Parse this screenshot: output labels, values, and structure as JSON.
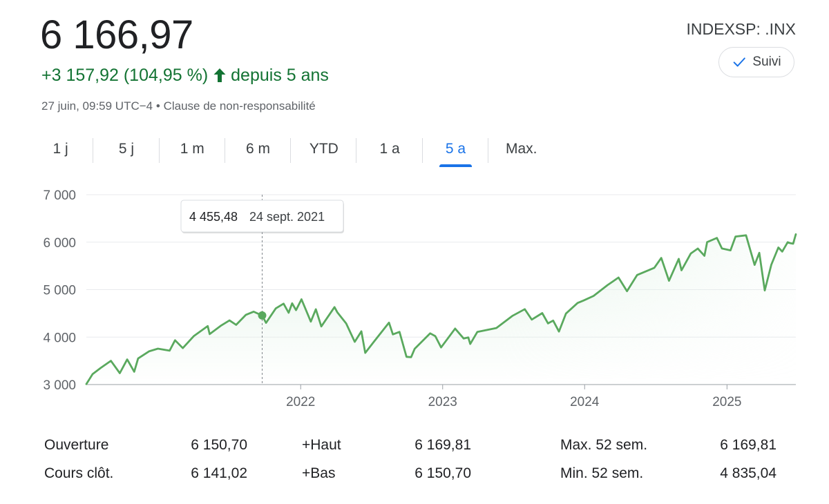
{
  "header": {
    "price": "6 166,97",
    "change": "+3 157,92 (104,95 %)",
    "period": "depuis 5 ans",
    "timestamp": "27 juin, 09:59 UTC−4",
    "separator": "•",
    "disclaimer": "Clause de non-responsabilité",
    "ticker": "INDEXSP: .INX",
    "follow_label": "Suivi"
  },
  "tabs": [
    {
      "label": "1 j"
    },
    {
      "label": "5 j"
    },
    {
      "label": "1 m"
    },
    {
      "label": "6 m"
    },
    {
      "label": "YTD"
    },
    {
      "label": "1 a"
    },
    {
      "label": "5 a",
      "active": true
    },
    {
      "label": "Max."
    }
  ],
  "colors": {
    "line": "#5aa95e",
    "fill": "#e6f4ea",
    "positive_text": "#137333",
    "active_tab": "#1a73e8",
    "grid": "#e8eaed",
    "axis_text": "#5f6368"
  },
  "tooltip": {
    "value": "4 455,48",
    "date": "24 sept. 2021"
  },
  "stats": {
    "open_label": "Ouverture",
    "open_value": "6 150,70",
    "close_label": "Cours clôt.",
    "close_value": "6 141,02",
    "high_label": "+Haut",
    "high_value": "6 169,81",
    "low_label": "+Bas",
    "low_value": "6 150,70",
    "max52_label": "Max. 52 sem.",
    "max52_value": "6 169,81",
    "min52_label": "Min. 52 sem.",
    "min52_value": "4 835,04"
  },
  "chart_data": {
    "type": "line",
    "ylim": [
      3000,
      7000
    ],
    "yticks": [
      3000,
      4000,
      5000,
      6000,
      7000
    ],
    "ytick_labels": [
      "3 000",
      "4 000",
      "5 000",
      "6 000",
      "7 000"
    ],
    "xlim": [
      "2020-06-29",
      "2025-06-27"
    ],
    "xticks": [
      "2022-01-01",
      "2023-01-01",
      "2024-01-01",
      "2025-01-01"
    ],
    "xtick_labels": [
      "2022",
      "2023",
      "2024",
      "2025"
    ],
    "grid": true,
    "highlight": {
      "x": "2021-09-24",
      "y": 4455.48
    },
    "series": [
      {
        "x": [
          "2020-06-29",
          "2020-07-15",
          "2020-08-05",
          "2020-08-31",
          "2020-09-23",
          "2020-10-12",
          "2020-10-30",
          "2020-11-09",
          "2020-12-07",
          "2020-12-30",
          "2021-01-29",
          "2021-02-12",
          "2021-03-04",
          "2021-04-01",
          "2021-05-07",
          "2021-05-12",
          "2021-06-11",
          "2021-07-02",
          "2021-07-19",
          "2021-08-13",
          "2021-09-02",
          "2021-09-24",
          "2021-10-04",
          "2021-10-29",
          "2021-11-18",
          "2021-12-01",
          "2021-12-10",
          "2021-12-20",
          "2022-01-03",
          "2022-01-27",
          "2022-02-09",
          "2022-02-23",
          "2022-03-29",
          "2022-04-05",
          "2022-04-28",
          "2022-05-20",
          "2022-06-06",
          "2022-06-16",
          "2022-07-08",
          "2022-08-16",
          "2022-08-26",
          "2022-09-12",
          "2022-09-30",
          "2022-10-12",
          "2022-10-21",
          "2022-11-30",
          "2022-12-13",
          "2022-12-28",
          "2023-02-02",
          "2023-02-24",
          "2023-03-08",
          "2023-03-13",
          "2023-03-31",
          "2023-05-19",
          "2023-06-30",
          "2023-07-31",
          "2023-08-18",
          "2023-09-14",
          "2023-09-29",
          "2023-10-12",
          "2023-10-27",
          "2023-11-14",
          "2023-12-14",
          "2023-12-29",
          "2024-01-24",
          "2024-02-29",
          "2024-03-28",
          "2024-04-19",
          "2024-05-15",
          "2024-06-28",
          "2024-07-16",
          "2024-08-05",
          "2024-08-30",
          "2024-09-06",
          "2024-09-30",
          "2024-10-18",
          "2024-11-04",
          "2024-11-11",
          "2024-12-06",
          "2024-12-19",
          "2025-01-10",
          "2025-01-23",
          "2025-02-19",
          "2025-03-13",
          "2025-03-25",
          "2025-04-08",
          "2025-04-25",
          "2025-05-13",
          "2025-05-23",
          "2025-06-06",
          "2025-06-13",
          "2025-06-20",
          "2025-06-27"
        ],
        "y": [
          3010,
          3220,
          3350,
          3500,
          3240,
          3530,
          3270,
          3550,
          3700,
          3756,
          3714,
          3934,
          3768,
          4020,
          4232,
          4063,
          4247,
          4352,
          4258,
          4468,
          4536,
          4455,
          4300,
          4605,
          4705,
          4513,
          4712,
          4568,
          4797,
          4326,
          4587,
          4225,
          4632,
          4525,
          4287,
          3901,
          4121,
          3667,
          3900,
          4305,
          4057,
          4110,
          3585,
          3577,
          3752,
          4080,
          4019,
          3783,
          4179,
          3970,
          3992,
          3855,
          4109,
          4192,
          4450,
          4589,
          4369,
          4505,
          4288,
          4349,
          4117,
          4495,
          4719,
          4770,
          4868,
          5096,
          5254,
          4967,
          5308,
          5460,
          5667,
          5186,
          5648,
          5408,
          5762,
          5865,
          5712,
          6001,
          6090,
          5867,
          5827,
          6119,
          6144,
          5521,
          5776,
          4982,
          5525,
          5887,
          5802,
          6000,
          5977,
          5967,
          6167
        ]
      }
    ]
  }
}
